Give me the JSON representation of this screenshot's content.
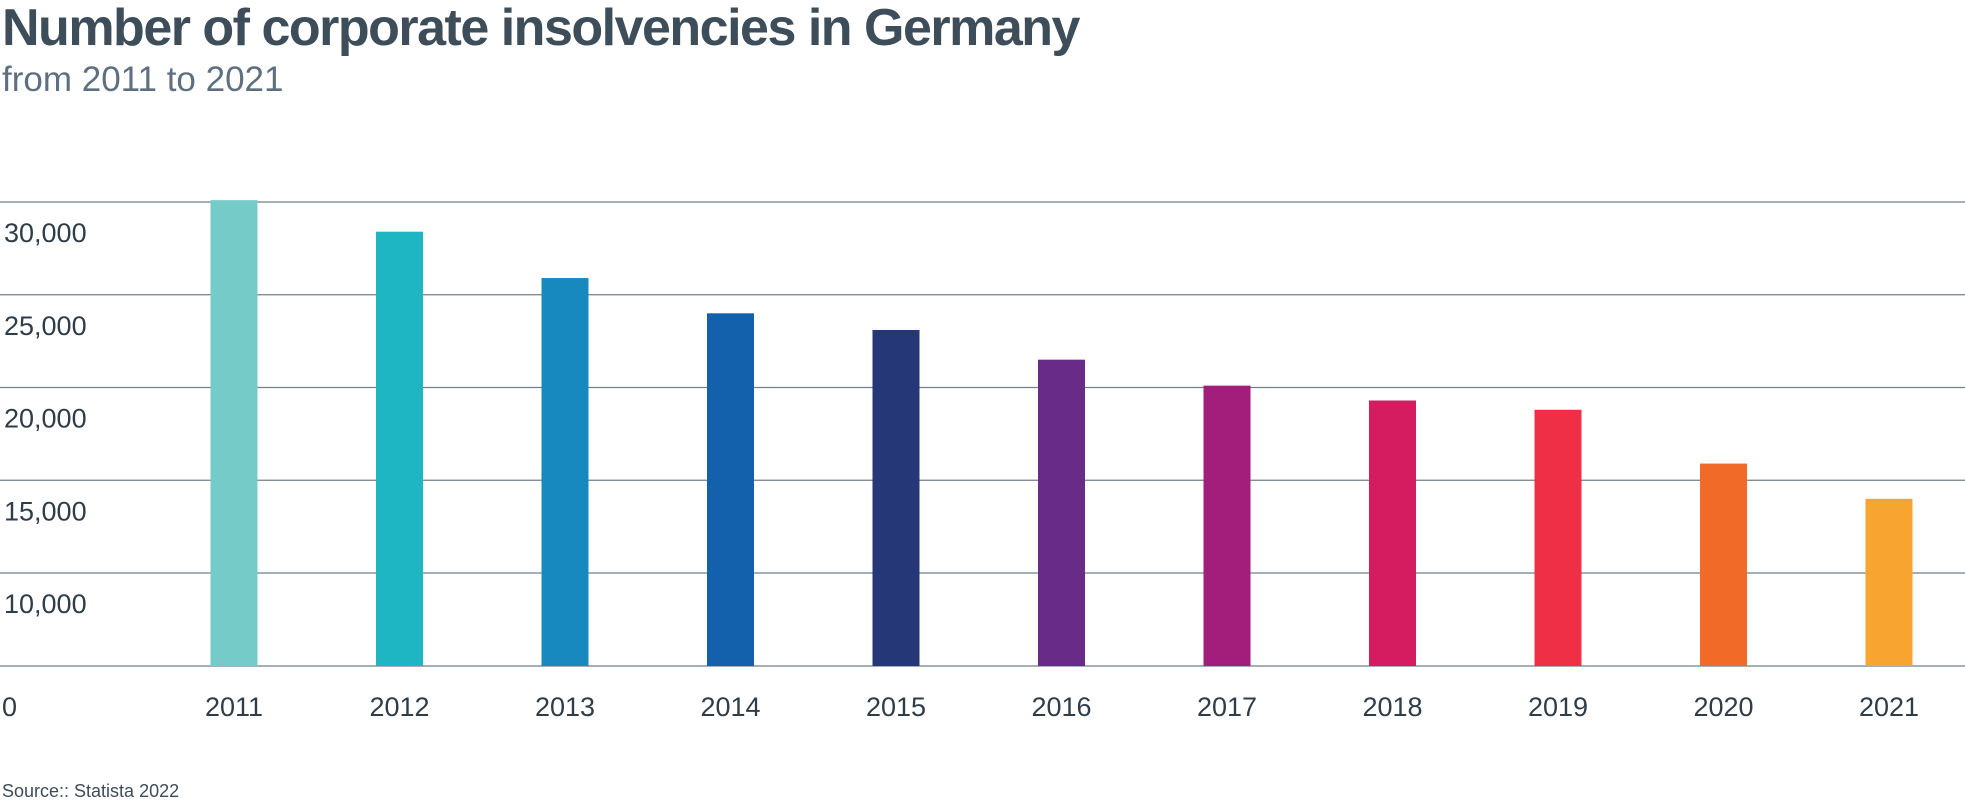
{
  "chart_data": {
    "type": "bar",
    "title": "Number of corporate insolvencies in Germany",
    "subtitle": "from 2011 to 2021",
    "source": "Source:: Statista 2022",
    "categories": [
      "2011",
      "2012",
      "2013",
      "2014",
      "2015",
      "2016",
      "2017",
      "2018",
      "2019",
      "2020",
      "2021"
    ],
    "values": [
      30100,
      28400,
      25900,
      24000,
      23100,
      21500,
      20100,
      19300,
      18800,
      15900,
      14000
    ],
    "y_ticks": [
      10000,
      15000,
      20000,
      25000,
      30000
    ],
    "y_tick_labels": [
      "10,000",
      "15,000",
      "20,000",
      "25,000",
      "30,000"
    ],
    "y_zero_label": "0",
    "colors": [
      "#74cbc8",
      "#1fb6c4",
      "#1789bf",
      "#1360ad",
      "#263777",
      "#682b87",
      "#a21e7a",
      "#d51c61",
      "#ef2f46",
      "#f26a27",
      "#f8a431"
    ],
    "grid": true,
    "legend": false
  }
}
